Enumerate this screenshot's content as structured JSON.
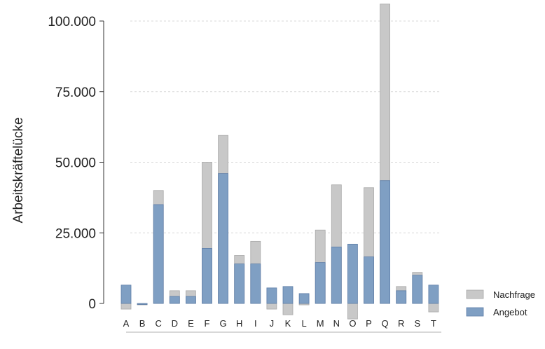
{
  "chart_data": {
    "type": "bar",
    "stacking": "overlay",
    "ylabel": "Arbeitskräftelücke",
    "xlabel": "",
    "ylim": [
      -6000,
      106000
    ],
    "yticks": [
      0,
      25000,
      50000,
      75000,
      100000
    ],
    "ytick_labels": [
      "0",
      "25.000",
      "50.000",
      "75.000",
      "100.000"
    ],
    "grid": "horizontal-dashed",
    "legend_position": "bottom-right",
    "categories": [
      "A",
      "B",
      "C",
      "D",
      "E",
      "F",
      "G",
      "H",
      "I",
      "J",
      "K",
      "L",
      "M",
      "N",
      "O",
      "P",
      "Q",
      "R",
      "S",
      "T"
    ],
    "series": [
      {
        "name": "Nachfrage",
        "color": "#c8c8c8",
        "values": [
          -2000,
          -500,
          40000,
          4500,
          4500,
          50000,
          59500,
          17000,
          22000,
          -2000,
          -4000,
          -500,
          26000,
          42000,
          -5500,
          41000,
          106000,
          6000,
          11000,
          -3000
        ]
      },
      {
        "name": "Angebot",
        "color": "#7f9fc3",
        "values": [
          6500,
          -300,
          35000,
          2500,
          2500,
          19500,
          46000,
          14000,
          14000,
          5500,
          6000,
          3500,
          14500,
          20000,
          21000,
          16500,
          43500,
          4500,
          10000,
          6500
        ]
      }
    ]
  }
}
